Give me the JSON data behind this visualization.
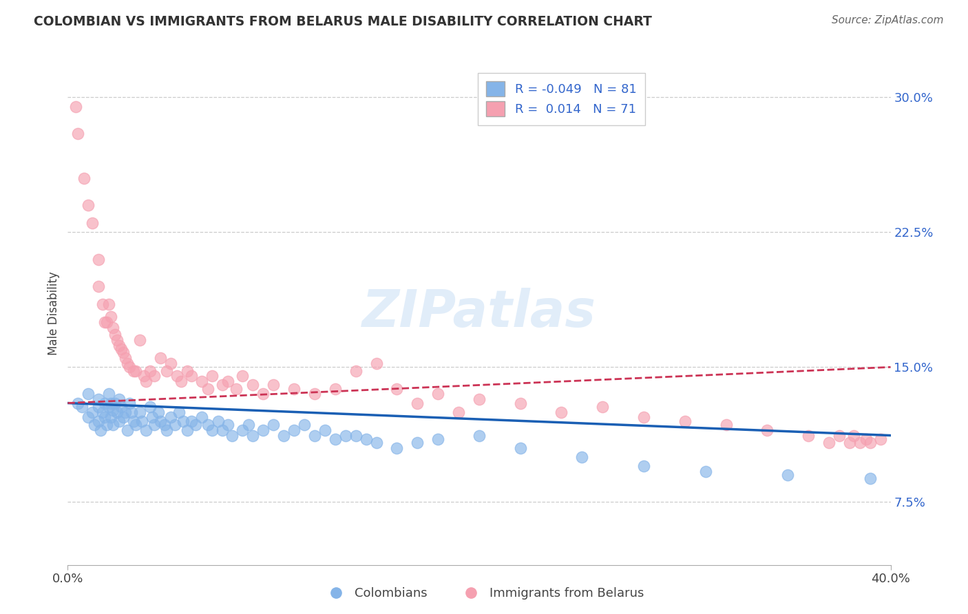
{
  "title": "COLOMBIAN VS IMMIGRANTS FROM BELARUS MALE DISABILITY CORRELATION CHART",
  "source": "Source: ZipAtlas.com",
  "ylabel": "Male Disability",
  "xmin": 0.0,
  "xmax": 0.4,
  "ymin": 0.04,
  "ymax": 0.32,
  "yticks": [
    0.075,
    0.15,
    0.225,
    0.3
  ],
  "ytick_labels": [
    "7.5%",
    "15.0%",
    "22.5%",
    "30.0%"
  ],
  "grid_color": "#cccccc",
  "background_color": "#ffffff",
  "colombians_color": "#85b4e8",
  "belarus_color": "#f5a0b0",
  "colombians_R": -0.049,
  "colombians_N": 81,
  "belarus_R": 0.014,
  "belarus_N": 71,
  "legend_R_color": "#3366cc",
  "watermark": "ZIPatlas",
  "colombians_x": [
    0.005,
    0.007,
    0.01,
    0.01,
    0.012,
    0.013,
    0.015,
    0.015,
    0.015,
    0.016,
    0.017,
    0.018,
    0.018,
    0.019,
    0.02,
    0.02,
    0.021,
    0.021,
    0.022,
    0.022,
    0.023,
    0.024,
    0.025,
    0.025,
    0.026,
    0.027,
    0.028,
    0.029,
    0.03,
    0.031,
    0.032,
    0.033,
    0.035,
    0.036,
    0.038,
    0.04,
    0.041,
    0.042,
    0.044,
    0.045,
    0.047,
    0.048,
    0.05,
    0.052,
    0.054,
    0.056,
    0.058,
    0.06,
    0.062,
    0.065,
    0.068,
    0.07,
    0.073,
    0.075,
    0.078,
    0.08,
    0.085,
    0.088,
    0.09,
    0.095,
    0.1,
    0.105,
    0.11,
    0.115,
    0.12,
    0.125,
    0.13,
    0.135,
    0.14,
    0.145,
    0.15,
    0.16,
    0.17,
    0.18,
    0.2,
    0.22,
    0.25,
    0.28,
    0.31,
    0.35,
    0.39
  ],
  "colombians_y": [
    0.13,
    0.128,
    0.135,
    0.122,
    0.125,
    0.118,
    0.132,
    0.128,
    0.12,
    0.115,
    0.125,
    0.13,
    0.122,
    0.118,
    0.135,
    0.128,
    0.13,
    0.122,
    0.126,
    0.118,
    0.13,
    0.125,
    0.132,
    0.12,
    0.128,
    0.122,
    0.125,
    0.115,
    0.13,
    0.125,
    0.12,
    0.118,
    0.125,
    0.12,
    0.115,
    0.128,
    0.122,
    0.118,
    0.125,
    0.12,
    0.118,
    0.115,
    0.122,
    0.118,
    0.125,
    0.12,
    0.115,
    0.12,
    0.118,
    0.122,
    0.118,
    0.115,
    0.12,
    0.115,
    0.118,
    0.112,
    0.115,
    0.118,
    0.112,
    0.115,
    0.118,
    0.112,
    0.115,
    0.118,
    0.112,
    0.115,
    0.11,
    0.112,
    0.112,
    0.11,
    0.108,
    0.105,
    0.108,
    0.11,
    0.112,
    0.105,
    0.1,
    0.095,
    0.092,
    0.09,
    0.088
  ],
  "belarus_x": [
    0.004,
    0.005,
    0.008,
    0.01,
    0.012,
    0.015,
    0.015,
    0.017,
    0.018,
    0.019,
    0.02,
    0.021,
    0.022,
    0.023,
    0.024,
    0.025,
    0.026,
    0.027,
    0.028,
    0.029,
    0.03,
    0.032,
    0.033,
    0.035,
    0.037,
    0.038,
    0.04,
    0.042,
    0.045,
    0.048,
    0.05,
    0.053,
    0.055,
    0.058,
    0.06,
    0.065,
    0.068,
    0.07,
    0.075,
    0.078,
    0.082,
    0.085,
    0.09,
    0.095,
    0.1,
    0.11,
    0.12,
    0.13,
    0.14,
    0.15,
    0.16,
    0.17,
    0.18,
    0.19,
    0.2,
    0.22,
    0.24,
    0.26,
    0.28,
    0.3,
    0.32,
    0.34,
    0.36,
    0.37,
    0.375,
    0.38,
    0.382,
    0.385,
    0.388,
    0.39,
    0.395
  ],
  "belarus_y": [
    0.295,
    0.28,
    0.255,
    0.24,
    0.23,
    0.21,
    0.195,
    0.185,
    0.175,
    0.175,
    0.185,
    0.178,
    0.172,
    0.168,
    0.165,
    0.162,
    0.16,
    0.158,
    0.155,
    0.152,
    0.15,
    0.148,
    0.148,
    0.165,
    0.145,
    0.142,
    0.148,
    0.145,
    0.155,
    0.148,
    0.152,
    0.145,
    0.142,
    0.148,
    0.145,
    0.142,
    0.138,
    0.145,
    0.14,
    0.142,
    0.138,
    0.145,
    0.14,
    0.135,
    0.14,
    0.138,
    0.135,
    0.138,
    0.148,
    0.152,
    0.138,
    0.13,
    0.135,
    0.125,
    0.132,
    0.13,
    0.125,
    0.128,
    0.122,
    0.12,
    0.118,
    0.115,
    0.112,
    0.108,
    0.112,
    0.108,
    0.112,
    0.108,
    0.11,
    0.108,
    0.11
  ]
}
